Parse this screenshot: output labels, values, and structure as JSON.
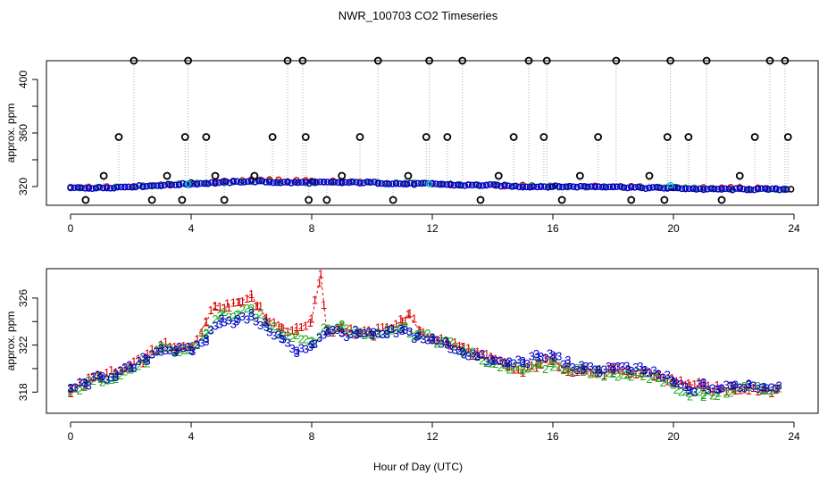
{
  "chart_data": {
    "title": "NWR_100703  CO2 Timeseries",
    "xlabel": "Hour of Day (UTC)",
    "colors": {
      "black": "#000000",
      "red": "#dd0000",
      "green": "#22aa22",
      "blue": "#0000cc",
      "cyan": "#00cccc",
      "gray": "#aaaaaa"
    },
    "panels": [
      {
        "type": "scatter",
        "ylabel": "approx. ppm",
        "xlim": [
          -0.8,
          24.8
        ],
        "ylim": [
          306,
          414
        ],
        "xticks": [
          0,
          4,
          8,
          12,
          16,
          20,
          24
        ],
        "yticks": [
          320,
          360,
          400
        ],
        "ytick_labels": [
          "320",
          "",
          "360",
          "",
          "400"
        ],
        "ytick_all": [
          320,
          340,
          360,
          380,
          400
        ],
        "spike_x": [
          0.5,
          1.1,
          1.6,
          2.1,
          2.7,
          3.2,
          3.7,
          3.8,
          3.9,
          4.5,
          4.8,
          5.1,
          6.1,
          6.7,
          7.2,
          7.7,
          7.8,
          7.9,
          8.5,
          9.0,
          9.6,
          10.2,
          10.7,
          11.2,
          11.8,
          11.9,
          12.5,
          13.0,
          13.6,
          14.2,
          14.7,
          15.2,
          15.7,
          15.8,
          16.3,
          16.9,
          17.5,
          18.1,
          18.6,
          19.2,
          19.7,
          19.8,
          19.9,
          20.5,
          21.1,
          21.6,
          22.2,
          22.7,
          23.2,
          23.7,
          23.8
        ],
        "spike_y": [
          310,
          328,
          357,
          414,
          310,
          328,
          310,
          357,
          414,
          357,
          328,
          310,
          328,
          357,
          414,
          414,
          357,
          310,
          310,
          328,
          357,
          414,
          310,
          328,
          357,
          414,
          357,
          414,
          310,
          328,
          357,
          414,
          357,
          414,
          310,
          328,
          357,
          414,
          310,
          328,
          310,
          357,
          414,
          357,
          414,
          310,
          328,
          357,
          414,
          414,
          357
        ],
        "series": [
          {
            "name": "black",
            "style": "circle",
            "x": [
              0,
              4,
              8,
              12,
              16,
              20,
              23.9
            ],
            "y": [
              319,
              323,
              324,
              322,
              320,
              319,
              318
            ]
          },
          {
            "name": "red",
            "style": "circle",
            "x": [
              0,
              2,
              4,
              6,
              8,
              10,
              12,
              14,
              16,
              18,
              20,
              22,
              23.8
            ],
            "y": [
              319,
              320,
              322,
              325,
              324,
              323,
              322,
              321,
              320,
              320,
              319,
              319,
              318
            ]
          },
          {
            "name": "green",
            "style": "circle",
            "x": [
              0,
              2,
              4,
              6,
              8,
              10,
              12,
              14,
              16,
              18,
              20,
              22,
              23.8
            ],
            "y": [
              319,
              320,
              322,
              324,
              323,
              323,
              322,
              321,
              320,
              320,
              319,
              318,
              318
            ]
          },
          {
            "name": "blue",
            "style": "circle",
            "x": [
              0,
              1,
              2,
              3,
              4,
              5,
              6,
              7,
              8,
              9,
              10,
              11,
              12,
              13,
              14,
              15,
              16,
              17,
              18,
              19,
              20,
              21,
              22,
              23,
              23.8
            ],
            "y": [
              319,
              319,
              320,
              321,
              322,
              323,
              324,
              323,
              323,
              323,
              323,
              322,
              322,
              321,
              321,
              320,
              320,
              320,
              320,
              319,
              319,
              318,
              318,
              318,
              318
            ]
          },
          {
            "name": "cyan",
            "style": "circle",
            "x": [
              3.9,
              11.9,
              19.9
            ],
            "y": [
              322,
              322,
              321
            ]
          }
        ]
      },
      {
        "type": "scatter",
        "ylabel": "approx. ppm",
        "xlim": [
          -0.8,
          24.8
        ],
        "ylim": [
          316.2,
          328.5
        ],
        "xticks": [
          0,
          4,
          8,
          12,
          16,
          20,
          24
        ],
        "yticks": [
          318,
          322,
          326
        ],
        "ytick_labels": [
          "318",
          "",
          "322",
          "",
          "326"
        ],
        "ytick_all": [
          318,
          320,
          322,
          324,
          326
        ],
        "series": [
          {
            "name": "1",
            "style": "glyph",
            "glyph": "1",
            "x": [
              0,
              0.5,
              1,
              1.5,
              2,
              2.5,
              3,
              3.5,
              4,
              4.5,
              4.8,
              5.2,
              5.6,
              6.0,
              6.2,
              6.5,
              7.0,
              7.5,
              8.0,
              8.3,
              8.5,
              9.0,
              9.5,
              10.0,
              10.5,
              11.0,
              11.2,
              11.6,
              12.0,
              12.5,
              13.0,
              13.5,
              14.0,
              14.5,
              15.0,
              15.5,
              16.0,
              16.5,
              17.0,
              17.5,
              18.0,
              18.5,
              19.0,
              19.5,
              20.0,
              20.5,
              21.0,
              21.5,
              22.0,
              22.5,
              23.0,
              23.5
            ],
            "y": [
              318.2,
              318.8,
              319.4,
              319.6,
              320.1,
              320.9,
              322.0,
              321.6,
              321.8,
              324.0,
              325.3,
              325.5,
              325.6,
              326.3,
              325.3,
              324.3,
              323.5,
              323.2,
              324.2,
              328.0,
              323.2,
              323.5,
              323.0,
              322.9,
              323.5,
              324.0,
              324.6,
              323.2,
              322.6,
              322.2,
              321.8,
              321.2,
              320.7,
              320.2,
              319.6,
              320.4,
              320.6,
              320.0,
              319.8,
              319.6,
              319.8,
              319.5,
              319.6,
              319.4,
              318.9,
              318.7,
              318.4,
              318.2,
              318.3,
              318.4,
              318.1,
              318.3
            ]
          },
          {
            "name": "2",
            "style": "glyph",
            "glyph": "2",
            "x": [
              0,
              0.5,
              1,
              1.5,
              2,
              2.5,
              3,
              3.5,
              4,
              4.5,
              5.0,
              5.5,
              6.0,
              6.5,
              7.0,
              7.5,
              8.0,
              8.5,
              9.0,
              9.5,
              10.0,
              10.5,
              11.0,
              11.5,
              12.0,
              12.5,
              13.0,
              13.5,
              14.0,
              14.5,
              15.0,
              15.5,
              16.0,
              16.5,
              17.0,
              17.5,
              18.0,
              18.5,
              19.0,
              19.5,
              20.0,
              20.5,
              21.0,
              21.5,
              22.0,
              22.5,
              23.0,
              23.5
            ],
            "y": [
              318.0,
              318.6,
              319.1,
              319.4,
              319.9,
              320.6,
              321.6,
              321.4,
              321.6,
              323.0,
              324.6,
              324.5,
              324.9,
              323.8,
              323.0,
              322.8,
              322.3,
              323.3,
              323.6,
              323.0,
              322.9,
              323.3,
              323.5,
              322.9,
              322.5,
              322.1,
              321.5,
              321.0,
              320.4,
              320.1,
              319.8,
              320.3,
              320.1,
              320.1,
              319.7,
              319.5,
              319.6,
              319.5,
              319.3,
              319.2,
              318.6,
              317.9,
              317.7,
              317.9,
              318.2,
              318.4,
              318.2,
              318.3
            ]
          },
          {
            "name": "3",
            "style": "glyph",
            "glyph": "3",
            "x": [
              0,
              0.5,
              1,
              1.5,
              2,
              2.5,
              3,
              3.5,
              4,
              4.5,
              5.0,
              5.5,
              6.0,
              6.5,
              7.0,
              7.5,
              8.0,
              8.5,
              9.0,
              9.5,
              10.0,
              10.5,
              11.0,
              11.5,
              12.0,
              12.5,
              13.0,
              13.5,
              14.0,
              14.5,
              15.0,
              15.5,
              16.0,
              16.5,
              17.0,
              17.5,
              18.0,
              18.5,
              19.0,
              19.5,
              20.0,
              20.5,
              21.0,
              21.5,
              22.0,
              22.5,
              23.0,
              23.5
            ],
            "y": [
              318.3,
              318.7,
              319.2,
              319.5,
              320.0,
              320.8,
              321.7,
              321.5,
              321.5,
              322.5,
              324.2,
              324.0,
              324.4,
              323.5,
              322.5,
              321.3,
              322.0,
              323.2,
              323.0,
              322.9,
              322.8,
              322.9,
              323.2,
              322.7,
              322.4,
              322.0,
              321.4,
              321.0,
              320.6,
              320.4,
              320.6,
              320.9,
              321.1,
              320.4,
              319.9,
              319.9,
              320.1,
              319.9,
              319.8,
              319.5,
              318.8,
              318.1,
              318.5,
              318.2,
              318.5,
              318.6,
              318.4,
              318.5
            ]
          }
        ]
      }
    ]
  }
}
